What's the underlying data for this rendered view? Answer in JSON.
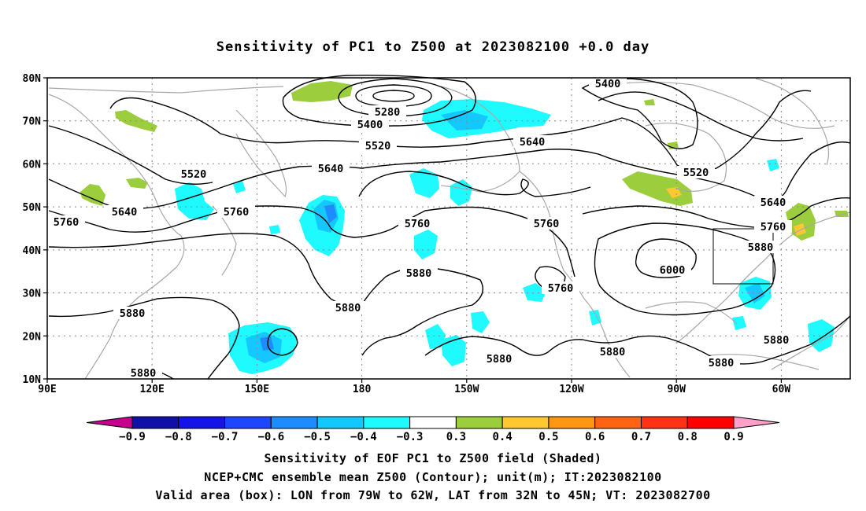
{
  "title": "Sensitivity of PC1 to Z500 at 2023082100 +0.0 day",
  "map": {
    "lat_labels": [
      "80N",
      "70N",
      "60N",
      "50N",
      "40N",
      "30N",
      "20N",
      "10N"
    ],
    "lon_labels": [
      "90E",
      "120E",
      "150E",
      "180",
      "150W",
      "120W",
      "90W",
      "60W"
    ],
    "grid_style": "dotted",
    "contour_labels": [
      {
        "text": "5400",
        "id": "c5400-a"
      },
      {
        "text": "5280",
        "id": "c5280"
      },
      {
        "text": "5400",
        "id": "c5400-b"
      },
      {
        "text": "5520",
        "id": "c5520-a"
      },
      {
        "text": "5640",
        "id": "c5640-a"
      },
      {
        "text": "5520",
        "id": "c5520-b"
      },
      {
        "text": "5640",
        "id": "c5640-b"
      },
      {
        "text": "5520",
        "id": "c5520-c"
      },
      {
        "text": "5640",
        "id": "c5640-c"
      },
      {
        "text": "5760",
        "id": "c5760-a"
      },
      {
        "text": "5760",
        "id": "c5760-b"
      },
      {
        "text": "5760",
        "id": "c5760-c"
      },
      {
        "text": "5640",
        "id": "c5640-d"
      },
      {
        "text": "5760",
        "id": "c5760-d"
      },
      {
        "text": "5760",
        "id": "c5760-e"
      },
      {
        "text": "5880",
        "id": "c5880-a"
      },
      {
        "text": "6000",
        "id": "c6000"
      },
      {
        "text": "5880",
        "id": "c5880-b"
      },
      {
        "text": "5760",
        "id": "c5760-f"
      },
      {
        "text": "5880",
        "id": "c5880-c"
      },
      {
        "text": "5880",
        "id": "c5880-d"
      },
      {
        "text": "5880",
        "id": "c5880-e"
      },
      {
        "text": "5880",
        "id": "c5880-f"
      },
      {
        "text": "5880",
        "id": "c5880-g"
      },
      {
        "text": "5880",
        "id": "c5880-h"
      }
    ],
    "valid_box": {
      "lon_from": "79W",
      "lon_to": "62W",
      "lat_from": "32N",
      "lat_to": "45N"
    }
  },
  "colorbar": {
    "labels": [
      "-0.9",
      "-0.8",
      "-0.7",
      "-0.6",
      "-0.5",
      "-0.4",
      "-0.3",
      "0.3",
      "0.4",
      "0.5",
      "0.6",
      "0.7",
      "0.8",
      "0.9"
    ],
    "colors": [
      "#c6008c",
      "#1010a8",
      "#1414e6",
      "#1e46ff",
      "#1e8cff",
      "#14c8ff",
      "#1efaff",
      "#ffffff",
      "#9bcd3c",
      "#ffc832",
      "#ff9614",
      "#ff6414",
      "#ff3214",
      "#ff0000",
      "#ffa0c8"
    ]
  },
  "colors": {
    "contour": "#000000",
    "coastline": "#a8a8a8",
    "negative_shade": "#1efaff",
    "negative_shade_strong": "#14c8ff",
    "negative_shade_core": "#1e8cff",
    "positive_shade": "#9bcd3c",
    "positive_shade_strong": "#ffc832"
  },
  "captions": {
    "line1": "Sensitivity of EOF PC1 to Z500 field (Shaded)",
    "line2": "NCEP+CMC ensemble mean Z500 (Contour); unit(m); IT:2023082100",
    "line3": "Valid area (box): LON from 79W to 62W, LAT from 32N to 45N; VT: 2023082700"
  }
}
